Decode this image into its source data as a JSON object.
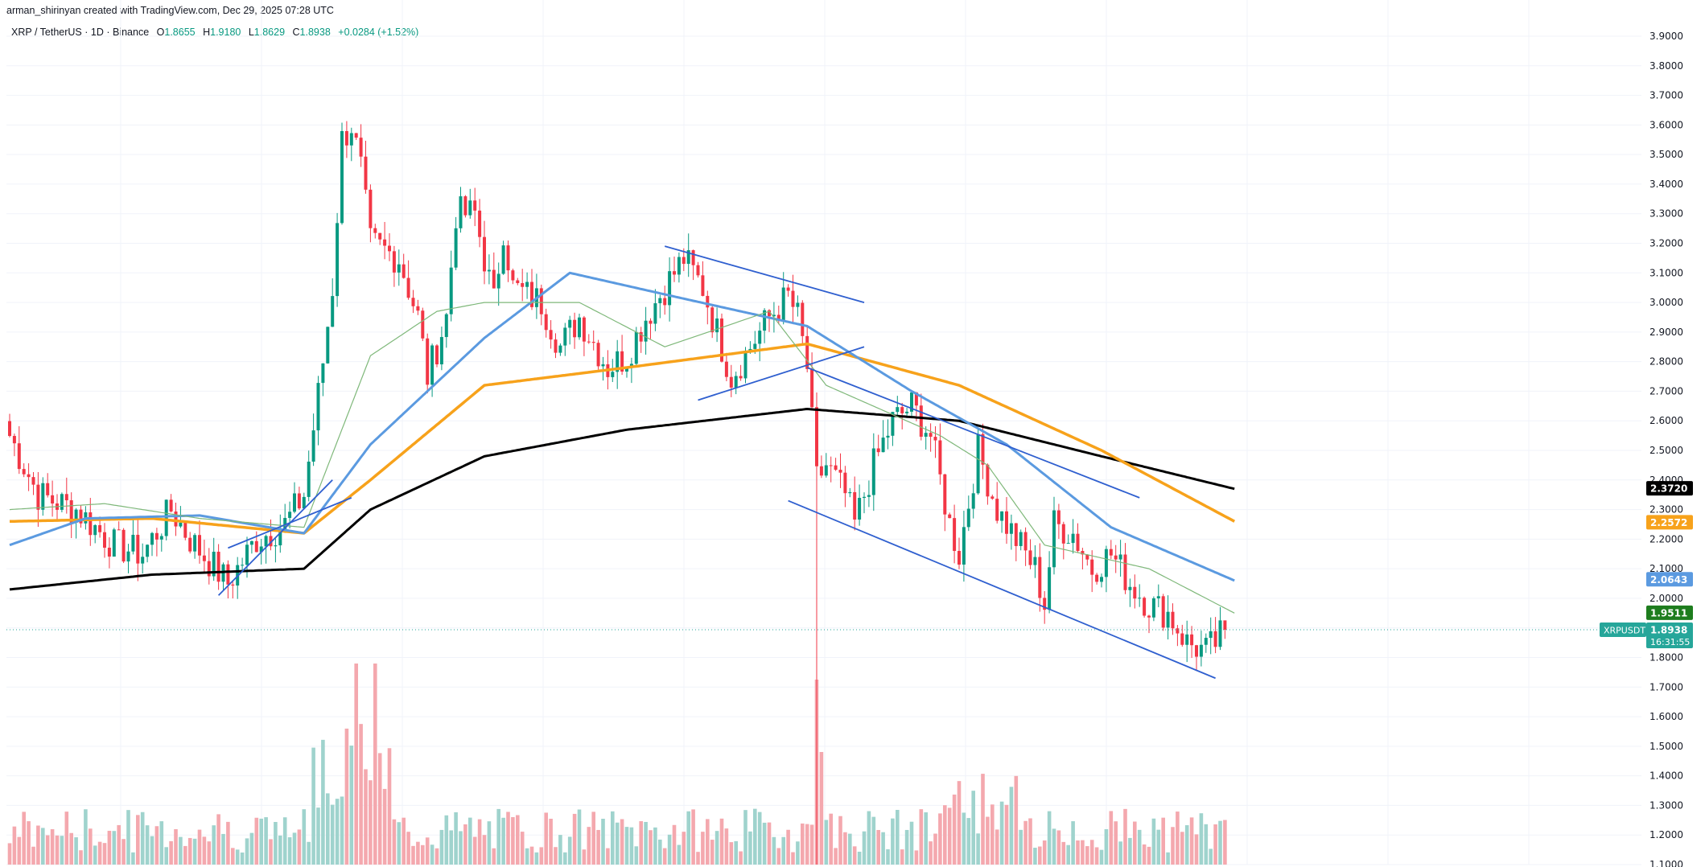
{
  "header": {
    "attribution": "arman_shirinyan created with TradingView.com, Dec 29, 2025 07:28 UTC"
  },
  "symbol": {
    "title": "XRP / TetherUS · 1D · Binance",
    "open_label": "O",
    "open": "1.8655",
    "high_label": "H",
    "high": "1.9180",
    "low_label": "L",
    "low": "1.8629",
    "close_label": "C",
    "close": "1.8938",
    "change": "+0.0284 (+1.52%)"
  },
  "colors": {
    "up": "#089981",
    "down": "#f23645",
    "vol_up": "#9fd3cd",
    "vol_down": "#f4a8ae",
    "ma_black": "#000000",
    "ma_orange": "#f7a21b",
    "ma_blue": "#5b9ae0",
    "ma_green": "#7fb87a",
    "trendline": "#2f5fcf",
    "last_price": "#26a69a"
  },
  "price_tags": [
    {
      "value": "2.3720",
      "color": "#000000"
    },
    {
      "value": "2.2572",
      "color": "#f7a21b"
    },
    {
      "value": "2.0643",
      "color": "#5b9ae0"
    },
    {
      "value": "1.9511",
      "color": "#1e7d1e"
    }
  ],
  "last_price": {
    "symbol": "XRPUSDT",
    "price": "1.8938",
    "countdown": "16:31:55"
  },
  "chart_data": {
    "type": "candlestick",
    "symbol": "XRP / TetherUS",
    "timeframe": "1D",
    "exchange": "Binance",
    "yaxis": {
      "ticks": [
        "3.9000",
        "3.8000",
        "3.7000",
        "3.6000",
        "3.5000",
        "3.4000",
        "3.3000",
        "3.2000",
        "3.1000",
        "3.0000",
        "2.9000",
        "2.8000",
        "2.7000",
        "2.6000",
        "2.5000",
        "2.4000",
        "2.3000",
        "2.2000",
        "2.1000",
        "2.0000",
        "1.9000",
        "1.8000",
        "1.7000",
        "1.6000",
        "1.5000",
        "1.4000",
        "1.3000",
        "1.2000",
        "1.1000"
      ],
      "range": [
        1.05,
        3.95
      ]
    },
    "waypoints": [
      [
        0,
        2.55
      ],
      [
        6,
        2.35
      ],
      [
        14,
        2.3
      ],
      [
        22,
        2.18
      ],
      [
        28,
        2.15
      ],
      [
        34,
        2.3
      ],
      [
        38,
        2.2
      ],
      [
        46,
        2.05
      ],
      [
        52,
        2.2
      ],
      [
        58,
        2.25
      ],
      [
        62,
        2.35
      ],
      [
        66,
        2.8
      ],
      [
        68,
        3.05
      ],
      [
        70,
        3.55
      ],
      [
        72,
        3.6
      ],
      [
        74,
        3.45
      ],
      [
        76,
        3.2
      ],
      [
        82,
        3.15
      ],
      [
        86,
        2.95
      ],
      [
        88,
        2.75
      ],
      [
        92,
        2.95
      ],
      [
        94,
        3.3
      ],
      [
        98,
        3.3
      ],
      [
        102,
        3.0
      ],
      [
        104,
        3.25
      ],
      [
        106,
        3.05
      ],
      [
        112,
        3.0
      ],
      [
        116,
        2.85
      ],
      [
        120,
        2.95
      ],
      [
        126,
        2.78
      ],
      [
        130,
        2.82
      ],
      [
        134,
        2.95
      ],
      [
        138,
        3.05
      ],
      [
        142,
        3.15
      ],
      [
        146,
        3.05
      ],
      [
        150,
        2.85
      ],
      [
        152,
        2.75
      ],
      [
        156,
        2.85
      ],
      [
        160,
        2.95
      ],
      [
        164,
        3.02
      ],
      [
        166,
        2.95
      ],
      [
        168,
        2.78
      ],
      [
        170,
        2.4
      ],
      [
        172,
        2.45
      ],
      [
        176,
        2.35
      ],
      [
        178,
        2.25
      ],
      [
        182,
        2.45
      ],
      [
        186,
        2.6
      ],
      [
        190,
        2.65
      ],
      [
        194,
        2.55
      ],
      [
        198,
        2.25
      ],
      [
        200,
        2.15
      ],
      [
        204,
        2.5
      ],
      [
        208,
        2.3
      ],
      [
        212,
        2.2
      ],
      [
        216,
        2.1
      ],
      [
        218,
        1.98
      ],
      [
        220,
        2.25
      ],
      [
        224,
        2.22
      ],
      [
        228,
        2.1
      ],
      [
        232,
        2.15
      ],
      [
        236,
        2.05
      ],
      [
        240,
        1.98
      ],
      [
        244,
        1.95
      ],
      [
        248,
        1.85
      ],
      [
        252,
        1.82
      ],
      [
        254,
        1.85
      ],
      [
        256,
        1.8938
      ]
    ],
    "candles_count": 257,
    "volume_spike_index": 170,
    "moving_averages": [
      {
        "color": "black",
        "points": [
          [
            0,
            2.03
          ],
          [
            30,
            2.08
          ],
          [
            62,
            2.1
          ],
          [
            76,
            2.3
          ],
          [
            100,
            2.48
          ],
          [
            130,
            2.57
          ],
          [
            168,
            2.64
          ],
          [
            200,
            2.6
          ],
          [
            230,
            2.48
          ],
          [
            258,
            2.37
          ]
        ]
      },
      {
        "color": "orange",
        "points": [
          [
            0,
            2.26
          ],
          [
            30,
            2.27
          ],
          [
            62,
            2.22
          ],
          [
            76,
            2.4
          ],
          [
            100,
            2.72
          ],
          [
            130,
            2.78
          ],
          [
            168,
            2.86
          ],
          [
            200,
            2.72
          ],
          [
            230,
            2.5
          ],
          [
            258,
            2.26
          ]
        ]
      },
      {
        "color": "blue",
        "points": [
          [
            0,
            2.18
          ],
          [
            16,
            2.27
          ],
          [
            40,
            2.28
          ],
          [
            62,
            2.22
          ],
          [
            76,
            2.52
          ],
          [
            100,
            2.88
          ],
          [
            118,
            3.1
          ],
          [
            140,
            3.02
          ],
          [
            168,
            2.92
          ],
          [
            190,
            2.7
          ],
          [
            210,
            2.52
          ],
          [
            232,
            2.24
          ],
          [
            258,
            2.06
          ]
        ]
      },
      {
        "color": "green",
        "points": [
          [
            0,
            2.3
          ],
          [
            20,
            2.32
          ],
          [
            40,
            2.27
          ],
          [
            62,
            2.24
          ],
          [
            76,
            2.82
          ],
          [
            90,
            2.97
          ],
          [
            100,
            3.0
          ],
          [
            120,
            3.0
          ],
          [
            138,
            2.85
          ],
          [
            160,
            2.97
          ],
          [
            172,
            2.72
          ],
          [
            196,
            2.55
          ],
          [
            206,
            2.45
          ],
          [
            218,
            2.18
          ],
          [
            240,
            2.1
          ],
          [
            258,
            1.95
          ]
        ]
      }
    ],
    "trendlines": [
      {
        "from": [
          44,
          2.01
        ],
        "to": [
          68,
          2.4
        ]
      },
      {
        "from": [
          46,
          2.17
        ],
        "to": [
          72,
          2.34
        ]
      },
      {
        "from": [
          138,
          3.19
        ],
        "to": [
          180,
          3.0
        ]
      },
      {
        "from": [
          145,
          2.67
        ],
        "to": [
          180,
          2.85
        ]
      },
      {
        "from": [
          168,
          2.78
        ],
        "to": [
          238,
          2.34
        ]
      },
      {
        "from": [
          164,
          2.33
        ],
        "to": [
          254,
          1.73
        ]
      }
    ]
  }
}
